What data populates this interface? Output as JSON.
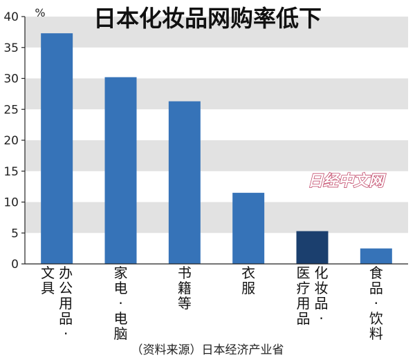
{
  "chart_data": {
    "type": "bar",
    "title": "日本化妆品网购率低下",
    "unit_label": "%",
    "ylim": [
      0,
      40
    ],
    "yticks": [
      0,
      5,
      10,
      15,
      20,
      25,
      30,
      35,
      40
    ],
    "grid": "alternating horizontal bands",
    "categories": [
      [
        "文具",
        "办公用品·"
      ],
      [
        "家电·电脑"
      ],
      [
        "书籍等"
      ],
      [
        "衣服"
      ],
      [
        "医疗用品",
        "化妆品·"
      ],
      [
        "食品·饮料"
      ]
    ],
    "values": [
      37.3,
      30.2,
      26.3,
      11.5,
      5.3,
      2.5
    ],
    "bar_colors": [
      "#3673b8",
      "#3673b8",
      "#3673b8",
      "#3673b8",
      "#1b3f6e",
      "#3673b8"
    ],
    "source": "（资料来源）日本经济产业省",
    "watermark": "日经中文网"
  }
}
